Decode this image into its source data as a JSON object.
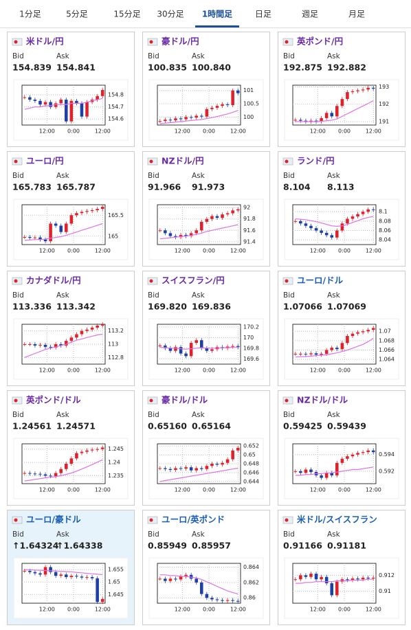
{
  "tabs": [
    "1分足",
    "5分足",
    "15分足",
    "30分足",
    "1時間足",
    "日足",
    "週足",
    "月足"
  ],
  "active_tab": 4,
  "bid_label": "Bid",
  "ask_label": "Ask",
  "up_color": "#e0202a",
  "down_color": "#1c3fa8",
  "ma_color": "#e070e8",
  "cards": [
    {
      "name": "米ドル/円",
      "color": "#6a2aa8",
      "bid": "154.839",
      "ask": "154.841",
      "chart": {
        "type": "candlestick",
        "ylim": [
          154.55,
          154.88
        ],
        "yticks": [
          154.6,
          154.7,
          154.8
        ],
        "xticks": [
          "12:00",
          "0:00",
          "12:00"
        ],
        "close": [
          154.78,
          154.76,
          154.75,
          154.72,
          154.74,
          154.7,
          154.73,
          154.76,
          154.58,
          154.75,
          154.73,
          154.62,
          154.74,
          154.76,
          154.79,
          154.84
        ],
        "ma": [
          154.68,
          154.69,
          154.7,
          154.7,
          154.71,
          154.71,
          154.72,
          154.72,
          154.72,
          154.73,
          154.73,
          154.73,
          154.74,
          154.75,
          154.76,
          154.77
        ]
      }
    },
    {
      "name": "豪ドル/円",
      "color": "#6a2aa8",
      "bid": "100.835",
      "ask": "100.840",
      "chart": {
        "type": "candlestick",
        "ylim": [
          99.7,
          101.2
        ],
        "yticks": [
          100,
          100.5,
          101
        ],
        "xticks": [
          "12:00",
          "0:00",
          "12:00"
        ],
        "close": [
          99.85,
          99.9,
          99.88,
          99.95,
          99.92,
          100.0,
          99.98,
          100.05,
          100.02,
          100.3,
          100.35,
          100.42,
          100.48,
          100.45,
          101.0,
          100.9
        ],
        "ma": [
          99.75,
          99.77,
          99.79,
          99.81,
          99.83,
          99.85,
          99.87,
          99.89,
          99.91,
          99.94,
          99.98,
          100.02,
          100.07,
          100.12,
          100.18,
          100.25
        ]
      }
    },
    {
      "name": "英ポンド/円",
      "color": "#6a2aa8",
      "bid": "192.875",
      "ask": "192.882",
      "chart": {
        "type": "candlestick",
        "ylim": [
          190.8,
          193.1
        ],
        "yticks": [
          191,
          192,
          193
        ],
        "xticks": [
          "12:00",
          "0:00",
          "12:00"
        ],
        "close": [
          191.1,
          191.05,
          191.0,
          191.05,
          191.0,
          191.2,
          191.5,
          191.3,
          191.9,
          192.3,
          192.7,
          192.75,
          192.8,
          192.85,
          192.95,
          192.9
        ],
        "ma": [
          191.0,
          191.0,
          191.0,
          191.0,
          191.0,
          191.02,
          191.05,
          191.08,
          191.15,
          191.3,
          191.45,
          191.6,
          191.75,
          191.9,
          192.05,
          192.2
        ]
      }
    },
    {
      "name": "ユーロ/円",
      "color": "#6a2aa8",
      "bid": "165.783",
      "ask": "165.787",
      "chart": {
        "type": "candlestick",
        "ylim": [
          164.8,
          165.75
        ],
        "yticks": [
          165,
          165.5
        ],
        "xticks": [
          "12:00",
          "0:00",
          "12:00"
        ],
        "close": [
          164.98,
          164.96,
          164.97,
          164.92,
          164.88,
          165.3,
          165.25,
          165.1,
          165.3,
          165.5,
          165.55,
          165.58,
          165.6,
          165.62,
          165.65,
          165.7
        ],
        "ma": [
          164.9,
          164.91,
          164.92,
          164.92,
          164.93,
          164.95,
          164.97,
          164.99,
          165.02,
          165.06,
          165.1,
          165.14,
          165.18,
          165.22,
          165.26,
          165.3
        ]
      }
    },
    {
      "name": "NZドル/円",
      "color": "#6a2aa8",
      "bid": "91.966",
      "ask": "91.973",
      "chart": {
        "type": "candlestick",
        "ylim": [
          91.35,
          92.05
        ],
        "yticks": [
          91.4,
          91.6,
          91.8,
          92
        ],
        "xticks": [
          "12:00",
          "0:00",
          "12:00"
        ],
        "close": [
          91.6,
          91.55,
          91.5,
          91.48,
          91.52,
          91.5,
          91.55,
          91.6,
          91.75,
          91.8,
          91.85,
          91.82,
          91.88,
          91.9,
          91.95,
          91.97
        ],
        "ma": [
          91.45,
          91.46,
          91.47,
          91.48,
          91.49,
          91.5,
          91.51,
          91.53,
          91.55,
          91.58,
          91.6,
          91.62,
          91.64,
          91.66,
          91.68,
          91.7
        ]
      }
    },
    {
      "name": "ランド/円",
      "color": "#6a2aa8",
      "bid": "8.104",
      "ask": "8.113",
      "chart": {
        "type": "candlestick",
        "ylim": [
          8.03,
          8.115
        ],
        "yticks": [
          8.04,
          8.06,
          8.08,
          8.1
        ],
        "xticks": [
          "12:00",
          "0:00",
          "12:00"
        ],
        "close": [
          8.08,
          8.075,
          8.07,
          8.065,
          8.06,
          8.055,
          8.05,
          8.045,
          8.06,
          8.075,
          8.085,
          8.09,
          8.095,
          8.1,
          8.105,
          8.104
        ],
        "ma": [
          8.085,
          8.084,
          8.083,
          8.081,
          8.079,
          8.076,
          8.073,
          8.07,
          8.069,
          8.07,
          8.073,
          8.077,
          8.081,
          8.085,
          8.088,
          8.09
        ]
      }
    },
    {
      "name": "カナダドル/円",
      "color": "#6a2aa8",
      "bid": "113.336",
      "ask": "113.342",
      "chart": {
        "type": "candlestick",
        "ylim": [
          112.7,
          113.3
        ],
        "yticks": [
          112.8,
          113,
          113.2
        ],
        "xticks": [
          "12:00",
          "0:00",
          "12:00"
        ],
        "close": [
          113.0,
          113.0,
          112.98,
          112.99,
          112.96,
          112.95,
          113.0,
          112.98,
          113.05,
          113.1,
          113.15,
          113.2,
          113.22,
          113.25,
          113.28,
          113.3
        ],
        "ma": [
          112.8,
          112.83,
          112.86,
          112.89,
          112.92,
          112.94,
          112.96,
          112.98,
          113.0,
          113.03,
          113.06,
          113.08,
          113.1,
          113.12,
          113.14,
          113.15
        ]
      }
    },
    {
      "name": "スイスフラン/円",
      "color": "#6a2aa8",
      "bid": "169.820",
      "ask": "169.836",
      "chart": {
        "type": "candlestick",
        "ylim": [
          169.5,
          170.25
        ],
        "yticks": [
          169.6,
          169.8,
          170,
          170.2
        ],
        "xticks": [
          "12:00",
          "0:00",
          "12:00"
        ],
        "close": [
          169.85,
          169.8,
          169.75,
          169.82,
          169.7,
          169.65,
          169.9,
          169.95,
          169.8,
          169.75,
          169.78,
          169.82,
          169.8,
          169.83,
          169.84,
          169.82
        ],
        "ma": [
          169.82,
          169.81,
          169.8,
          169.8,
          169.79,
          169.78,
          169.79,
          169.8,
          169.81,
          169.8,
          169.8,
          169.8,
          169.81,
          169.81,
          169.82,
          169.82
        ]
      }
    },
    {
      "name": "ユーロ/ドル",
      "color": "#1a5fb4",
      "bid": "1.07066",
      "ask": "1.07069",
      "chart": {
        "type": "candlestick",
        "ylim": [
          1.063,
          1.0715
        ],
        "yticks": [
          1.064,
          1.066,
          1.068,
          1.07
        ],
        "xticks": [
          "12:00",
          "0:00",
          "12:00"
        ],
        "close": [
          1.0652,
          1.0652,
          1.0651,
          1.0653,
          1.065,
          1.0652,
          1.066,
          1.0665,
          1.0662,
          1.0675,
          1.069,
          1.0695,
          1.0698,
          1.07,
          1.0703,
          1.0707
        ],
        "ma": [
          1.0645,
          1.0646,
          1.0646,
          1.0647,
          1.0648,
          1.0649,
          1.065,
          1.0652,
          1.0654,
          1.0657,
          1.066,
          1.0664,
          1.0668,
          1.0672,
          1.0678,
          1.0685
        ]
      }
    },
    {
      "name": "英ポンド/ドル",
      "color": "#6a2aa8",
      "bid": "1.24561",
      "ask": "1.24571",
      "chart": {
        "type": "candlestick",
        "ylim": [
          1.232,
          1.247
        ],
        "yticks": [
          1.235,
          1.24,
          1.245
        ],
        "xticks": [
          "12:00",
          "0:00",
          "12:00"
        ],
        "close": [
          1.236,
          1.2358,
          1.2357,
          1.2355,
          1.235,
          1.2348,
          1.236,
          1.2375,
          1.2395,
          1.2415,
          1.2435,
          1.244,
          1.2445,
          1.2448,
          1.245,
          1.2456
        ],
        "ma": [
          1.233,
          1.2333,
          1.2336,
          1.2339,
          1.2342,
          1.2344,
          1.2347,
          1.235,
          1.2355,
          1.236,
          1.2367,
          1.2375,
          1.2383,
          1.2392,
          1.2401,
          1.241
        ]
      }
    },
    {
      "name": "豪ドル/ドル",
      "color": "#6a2aa8",
      "bid": "0.65160",
      "ask": "0.65164",
      "chart": {
        "type": "candlestick",
        "ylim": [
          0.6435,
          0.6525
        ],
        "yticks": [
          0.644,
          0.646,
          0.648,
          0.65,
          0.652
        ],
        "xticks": [
          "12:00",
          "0:00",
          "12:00"
        ],
        "close": [
          0.647,
          0.6468,
          0.6466,
          0.647,
          0.6469,
          0.6472,
          0.6465,
          0.647,
          0.6468,
          0.6475,
          0.648,
          0.6478,
          0.6482,
          0.649,
          0.651,
          0.6516
        ],
        "ma": [
          0.644,
          0.6442,
          0.6444,
          0.6446,
          0.6448,
          0.645,
          0.6452,
          0.6454,
          0.6456,
          0.6458,
          0.646,
          0.6462,
          0.6464,
          0.6466,
          0.6468,
          0.647
        ]
      }
    },
    {
      "name": "NZドル/ドル",
      "color": "#6a2aa8",
      "bid": "0.59425",
      "ask": "0.59439",
      "chart": {
        "type": "candlestick",
        "ylim": [
          0.5905,
          0.5953
        ],
        "yticks": [
          0.592,
          0.594
        ],
        "xticks": [
          "12:00",
          "0:00",
          "12:00"
        ],
        "close": [
          0.592,
          0.5918,
          0.5922,
          0.5919,
          0.5915,
          0.5912,
          0.5918,
          0.5915,
          0.593,
          0.5935,
          0.5938,
          0.594,
          0.5942,
          0.5943,
          0.5945,
          0.5943
        ],
        "ma": [
          0.5915,
          0.5915,
          0.5916,
          0.5916,
          0.5917,
          0.5917,
          0.5918,
          0.5918,
          0.5919,
          0.592,
          0.5921,
          0.5922,
          0.5922,
          0.5923,
          0.5924,
          0.5925
        ]
      }
    },
    {
      "name": "ユーロ/豪ドル",
      "color": "#1a5fb4",
      "bid": "↑1.64324",
      "ask": "↑1.64338",
      "highlight": true,
      "chart": {
        "type": "candlestick",
        "ylim": [
          1.6415,
          1.6575
        ],
        "yticks": [
          1.645,
          1.65,
          1.655
        ],
        "xticks": [
          "12:00",
          "0:00",
          "12:00"
        ],
        "close": [
          1.6545,
          1.654,
          1.6535,
          1.653,
          1.656,
          1.654,
          1.6525,
          1.653,
          1.652,
          1.6525,
          1.6522,
          1.6518,
          1.652,
          1.6515,
          1.642,
          1.6432
        ],
        "ma": [
          1.655,
          1.6549,
          1.6548,
          1.6547,
          1.6546,
          1.6545,
          1.6544,
          1.6543,
          1.6542,
          1.6541,
          1.6539,
          1.6537,
          1.6535,
          1.6533,
          1.6531,
          1.653
        ]
      }
    },
    {
      "name": "ユーロ/英ポンド",
      "color": "#1a5fb4",
      "bid": "0.85949",
      "ask": "0.85957",
      "chart": {
        "type": "candlestick",
        "ylim": [
          0.8593,
          0.8645
        ],
        "yticks": [
          0.86,
          0.862,
          0.864
        ],
        "xticks": [
          "12:00",
          "0:00",
          "12:00"
        ],
        "close": [
          0.8625,
          0.8622,
          0.8625,
          0.8624,
          0.8628,
          0.863,
          0.8625,
          0.862,
          0.8605,
          0.86,
          0.8598,
          0.8597,
          0.8596,
          0.8597,
          0.8596,
          0.8595
        ],
        "ma": [
          0.863,
          0.863,
          0.8629,
          0.8629,
          0.8628,
          0.8628,
          0.8627,
          0.8626,
          0.8624,
          0.8621,
          0.8618,
          0.8615,
          0.8612,
          0.8609,
          0.8607,
          0.8605
        ]
      }
    },
    {
      "name": "米ドル/スイスフラン",
      "color": "#1a5fb4",
      "bid": "0.91166",
      "ask": "0.91181",
      "chart": {
        "type": "candlestick",
        "ylim": [
          0.9085,
          0.9135
        ],
        "yticks": [
          0.91,
          0.912
        ],
        "xticks": [
          "12:00",
          "0:00",
          "12:00"
        ],
        "close": [
          0.9115,
          0.912,
          0.9118,
          0.9122,
          0.9115,
          0.9118,
          0.911,
          0.9095,
          0.9112,
          0.9115,
          0.9114,
          0.9116,
          0.9115,
          0.9117,
          0.9116,
          0.9117
        ],
        "ma": [
          0.911,
          0.911,
          0.9111,
          0.9111,
          0.9112,
          0.9112,
          0.9112,
          0.9112,
          0.9113,
          0.9113,
          0.9113,
          0.9114,
          0.9114,
          0.9114,
          0.9115,
          0.9115
        ]
      }
    }
  ]
}
